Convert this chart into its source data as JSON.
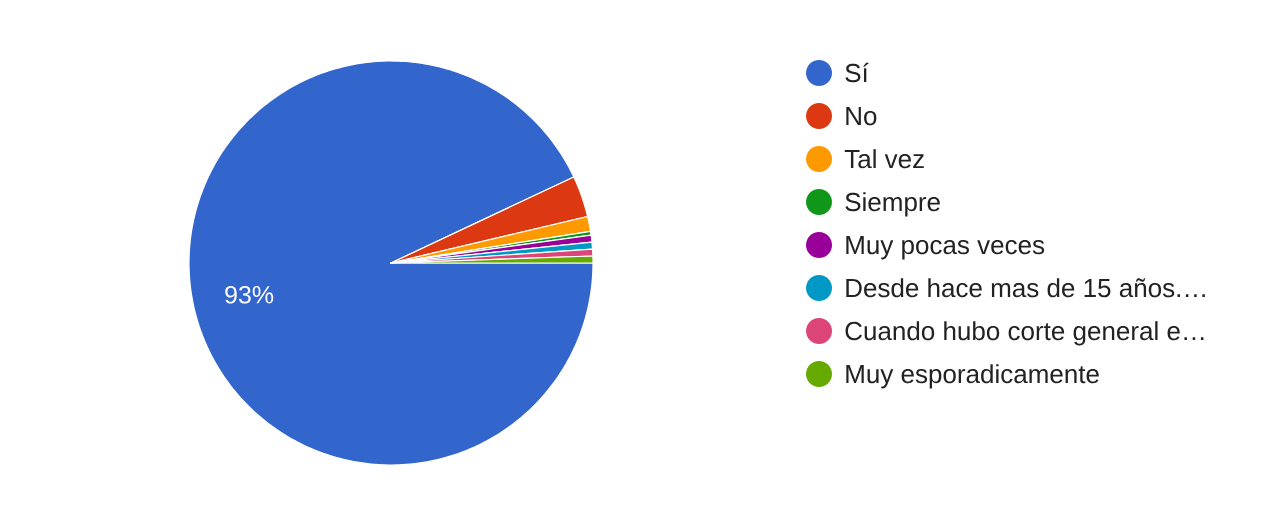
{
  "chart_data": {
    "type": "pie",
    "categories": [
      "Sí",
      "No",
      "Tal vez",
      "Siempre",
      "Muy pocas veces",
      "Desde hace mas de 15 años.…",
      "Cuando hubo corte general e…",
      "Muy esporadicamente"
    ],
    "values": [
      93,
      3.3,
      1.2,
      0.3,
      0.55,
      0.55,
      0.55,
      0.55
    ],
    "colors": [
      "#3366cc",
      "#dc3912",
      "#ff9900",
      "#109618",
      "#990099",
      "#0099c6",
      "#dd4477",
      "#66aa00"
    ],
    "value_labels": [
      "93%",
      null,
      null,
      null,
      null,
      null,
      null,
      null
    ],
    "legend": "right"
  }
}
